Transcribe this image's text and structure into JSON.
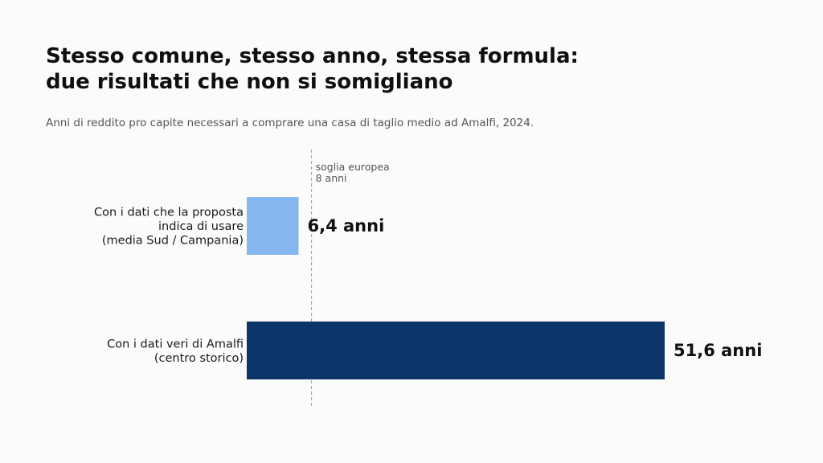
{
  "header": {
    "title_line1": "Stesso comune, stesso anno, stessa formula:",
    "title_line2": "due risultati che non si somigliano",
    "subtitle": "Anni di reddito pro capite necessari a comprare una casa di taglio medio ad Amalfi, 2024."
  },
  "chart_data": {
    "type": "bar",
    "orientation": "horizontal",
    "categories": [
      [
        "Con i dati che la proposta",
        "indica di usare",
        "(media Sud / Campania)"
      ],
      [
        "Con i dati veri di Amalfi",
        "(centro storico)"
      ]
    ],
    "values": [
      6.4,
      51.6
    ],
    "value_labels": [
      "6,4 anni",
      "51,6 anni"
    ],
    "colors": [
      "#86b7f0",
      "#0d356a"
    ],
    "xlim": [
      0,
      51.6
    ],
    "grid": false,
    "reference_line": {
      "value": 8,
      "label_lines": [
        "soglia europea",
        "8 anni"
      ],
      "color": "#9a9a9a"
    }
  }
}
